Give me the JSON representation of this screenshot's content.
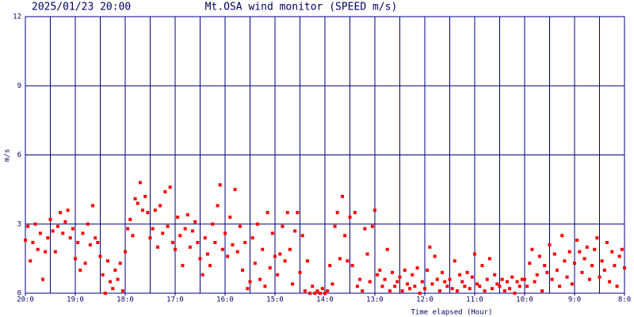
{
  "chart_data": {
    "type": "scatter",
    "date_label": "2025/01/23 20:00",
    "title": "Mt.OSA wind monitor (SPEED m/s)",
    "y_label": "m/s",
    "x_label": "Time elapsed (Hour)",
    "xlim": [
      0,
      12
    ],
    "ylim": [
      0,
      12
    ],
    "yticks": [
      0,
      3,
      6,
      9,
      12
    ],
    "xticks": [
      {
        "value": 0,
        "label": "20:0"
      },
      {
        "value": 1,
        "label": "19:0"
      },
      {
        "value": 2,
        "label": "18:0"
      },
      {
        "value": 3,
        "label": "17:0"
      },
      {
        "value": 4,
        "label": "16:0"
      },
      {
        "value": 5,
        "label": "15:0"
      },
      {
        "value": 6,
        "label": "14:0"
      },
      {
        "value": 7,
        "label": "13:0"
      },
      {
        "value": 8,
        "label": "12:0"
      },
      {
        "value": 9,
        "label": "11:0"
      },
      {
        "value": 10,
        "label": "10:0"
      },
      {
        "value": 11,
        "label": "9:0"
      },
      {
        "value": 12,
        "label": "8:0"
      }
    ],
    "xgrid": [
      0,
      0.5,
      1,
      1.5,
      2,
      2.5,
      3,
      3.5,
      4,
      4.5,
      5,
      5.5,
      6,
      6.5,
      7,
      7.5,
      8,
      8.5,
      9,
      9.5,
      10,
      10.5,
      11,
      11.5,
      12
    ],
    "grid": true,
    "grid_color": "#000080",
    "series": [
      {
        "color": "#ff0000",
        "x": [
          0,
          0.05,
          0.1,
          0.15,
          0.2,
          0.25,
          0.3,
          0.35,
          0.4,
          0.45,
          0.5,
          0.55,
          0.6,
          0.65,
          0.7,
          0.75,
          0.8,
          0.85,
          0.9,
          0.95,
          1,
          1.05,
          1.1,
          1.15,
          1.2,
          1.25,
          1.3,
          1.35,
          1.4,
          1.45,
          1.5,
          1.55,
          1.6,
          1.65,
          1.7,
          1.75,
          1.8,
          1.85,
          1.9,
          1.95,
          2,
          2.05,
          2.1,
          2.15,
          2.2,
          2.25,
          2.3,
          2.35,
          2.4,
          2.45,
          2.5,
          2.55,
          2.6,
          2.65,
          2.7,
          2.75,
          2.8,
          2.85,
          2.9,
          2.95,
          3,
          3.05,
          3.1,
          3.15,
          3.2,
          3.25,
          3.3,
          3.35,
          3.4,
          3.45,
          3.5,
          3.55,
          3.6,
          3.65,
          3.7,
          3.75,
          3.8,
          3.85,
          3.9,
          3.95,
          4,
          4.05,
          4.1,
          4.15,
          4.2,
          4.25,
          4.3,
          4.35,
          4.4,
          4.45,
          4.5,
          4.55,
          4.6,
          4.65,
          4.7,
          4.75,
          4.8,
          4.85,
          4.9,
          4.95,
          5,
          5.05,
          5.1,
          5.15,
          5.2,
          5.25,
          5.3,
          5.35,
          5.4,
          5.45,
          5.5,
          5.55,
          5.6,
          5.65,
          5.7,
          5.75,
          5.8,
          5.85,
          5.9,
          5.95,
          6,
          6.05,
          6.1,
          6.15,
          6.2,
          6.25,
          6.3,
          6.35,
          6.4,
          6.45,
          6.5,
          6.55,
          6.6,
          6.65,
          6.7,
          6.75,
          6.8,
          6.85,
          6.9,
          6.95,
          7,
          7.05,
          7.1,
          7.15,
          7.2,
          7.25,
          7.3,
          7.35,
          7.4,
          7.45,
          7.5,
          7.55,
          7.6,
          7.65,
          7.7,
          7.75,
          7.8,
          7.85,
          7.9,
          7.95,
          8,
          8.05,
          8.1,
          8.15,
          8.2,
          8.25,
          8.3,
          8.35,
          8.4,
          8.45,
          8.5,
          8.55,
          8.6,
          8.65,
          8.7,
          8.75,
          8.8,
          8.85,
          8.9,
          8.95,
          9,
          9.05,
          9.1,
          9.15,
          9.2,
          9.25,
          9.3,
          9.35,
          9.4,
          9.45,
          9.5,
          9.55,
          9.6,
          9.65,
          9.7,
          9.75,
          9.8,
          9.85,
          9.9,
          9.95,
          10,
          10.05,
          10.1,
          10.15,
          10.2,
          10.25,
          10.3,
          10.35,
          10.4,
          10.45,
          10.5,
          10.55,
          10.6,
          10.65,
          10.7,
          10.75,
          10.8,
          10.85,
          10.9,
          10.95,
          11,
          11.05,
          11.1,
          11.15,
          11.2,
          11.25,
          11.3,
          11.35,
          11.4,
          11.45,
          11.5,
          11.55,
          11.6,
          11.65,
          11.7,
          11.75,
          11.8,
          11.85,
          11.9,
          11.95,
          12
        ],
        "values": [
          2.3,
          2.9,
          1.4,
          2.2,
          3.0,
          1.9,
          2.6,
          0.6,
          1.8,
          2.4,
          3.2,
          2.7,
          1.8,
          2.9,
          3.5,
          2.6,
          3.1,
          3.6,
          2.4,
          2.8,
          1.5,
          2.2,
          1.0,
          2.6,
          1.3,
          3.0,
          2.1,
          3.8,
          2.4,
          2.2,
          1.6,
          0.8,
          0.0,
          1.4,
          0.5,
          0.2,
          1.0,
          0.6,
          1.3,
          0.1,
          1.8,
          2.8,
          3.2,
          2.5,
          4.1,
          3.9,
          4.8,
          3.6,
          4.2,
          3.5,
          2.4,
          2.8,
          3.6,
          2.0,
          3.8,
          2.6,
          4.4,
          2.9,
          4.6,
          2.2,
          1.9,
          3.3,
          2.5,
          1.2,
          2.8,
          3.4,
          2.0,
          2.7,
          3.1,
          2.2,
          1.5,
          0.8,
          2.4,
          1.7,
          1.2,
          3.0,
          2.2,
          3.8,
          4.7,
          1.9,
          2.6,
          1.6,
          3.3,
          2.1,
          4.5,
          1.8,
          2.9,
          1.0,
          2.2,
          0.2,
          0.5,
          2.4,
          1.3,
          3.0,
          0.6,
          1.9,
          0.3,
          3.5,
          1.1,
          2.6,
          1.6,
          0.8,
          1.7,
          2.9,
          1.4,
          3.5,
          1.9,
          0.4,
          2.7,
          3.5,
          0.9,
          2.5,
          0.1,
          1.4,
          0.0,
          0.3,
          0.0,
          0.1,
          0.0,
          0.2,
          0.0,
          0.1,
          1.2,
          0.4,
          2.9,
          3.5,
          1.5,
          4.2,
          2.5,
          1.4,
          3.3,
          1.2,
          3.5,
          0.3,
          0.6,
          0.1,
          2.8,
          1.7,
          0.5,
          2.9,
          3.6,
          0.8,
          1.0,
          0.3,
          0.6,
          1.9,
          0.1,
          0.9,
          0.3,
          0.5,
          0.7,
          0.1,
          1.0,
          0.4,
          0.2,
          0.8,
          0.3,
          1.1,
          0.0,
          0.5,
          0.2,
          1.0,
          2.0,
          0.4,
          1.6,
          0.6,
          0.1,
          0.9,
          0.5,
          0.3,
          0.6,
          0.2,
          1.4,
          0.1,
          0.8,
          0.5,
          0.3,
          0.9,
          0.2,
          0.7,
          1.7,
          0.4,
          0.3,
          1.2,
          0.1,
          0.6,
          1.5,
          0.2,
          0.8,
          0.4,
          0.3,
          0.6,
          0.1,
          0.5,
          0.2,
          0.7,
          0.0,
          0.5,
          0.3,
          0.6,
          0.6,
          0.3,
          1.3,
          1.9,
          0.5,
          0.8,
          1.6,
          0.1,
          1.2,
          0.9,
          2.1,
          0.6,
          1.7,
          1.0,
          0.3,
          2.5,
          1.4,
          0.7,
          1.8,
          0.4,
          1.3,
          2.3,
          1.8,
          0.9,
          1.5,
          2.0,
          0.6,
          1.2,
          1.9,
          2.4,
          0.7,
          1.4,
          1.0,
          2.2,
          0.5,
          1.8,
          1.2,
          0.3,
          1.6,
          1.9,
          1.1
        ]
      }
    ]
  }
}
